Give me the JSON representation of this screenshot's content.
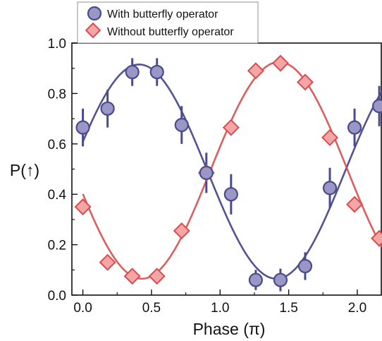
{
  "chart_data": {
    "type": "scatter",
    "xlabel": "Phase (π)",
    "ylabel": "P(↑)",
    "xlim": [
      -0.08,
      2.18
    ],
    "ylim": [
      0.0,
      1.0
    ],
    "xticks": [
      0.0,
      0.5,
      1.0,
      1.5,
      2.0
    ],
    "yticks": [
      0.0,
      0.2,
      0.4,
      0.6,
      0.8,
      1.0
    ],
    "xtick_labels": [
      "0.0",
      "0.5",
      "1.0",
      "1.5",
      "2.0"
    ],
    "ytick_labels": [
      "0.0",
      "0.2",
      "0.4",
      "0.6",
      "0.8",
      "1.0"
    ],
    "grid": false,
    "legend_position": "top",
    "series": [
      {
        "name": "With butterfly operator",
        "marker": "circle",
        "color": "#4a4a8c",
        "fill": "#9a97c6",
        "points": [
          {
            "x": 0.0,
            "y": 0.665,
            "err": 0.075
          },
          {
            "x": 0.18,
            "y": 0.74,
            "err": 0.075
          },
          {
            "x": 0.36,
            "y": 0.885,
            "err": 0.055
          },
          {
            "x": 0.54,
            "y": 0.885,
            "err": 0.055
          },
          {
            "x": 0.72,
            "y": 0.675,
            "err": 0.075
          },
          {
            "x": 0.9,
            "y": 0.485,
            "err": 0.08
          },
          {
            "x": 1.08,
            "y": 0.4,
            "err": 0.08
          },
          {
            "x": 1.26,
            "y": 0.06,
            "err": 0.04
          },
          {
            "x": 1.44,
            "y": 0.06,
            "err": 0.045
          },
          {
            "x": 1.62,
            "y": 0.115,
            "err": 0.055
          },
          {
            "x": 1.8,
            "y": 0.425,
            "err": 0.08
          },
          {
            "x": 1.98,
            "y": 0.665,
            "err": 0.075
          },
          {
            "x": 2.16,
            "y": 0.75,
            "err": 0.08
          }
        ],
        "fit": {
          "amplitude": 0.425,
          "offset": 0.49,
          "peak_phase": 0.41
        }
      },
      {
        "name": "Without butterfly operator",
        "marker": "diamond",
        "color": "#d94d4d",
        "fill": "#f4a6a6",
        "points": [
          {
            "x": 0.0,
            "y": 0.35
          },
          {
            "x": 0.18,
            "y": 0.13
          },
          {
            "x": 0.36,
            "y": 0.075
          },
          {
            "x": 0.54,
            "y": 0.075
          },
          {
            "x": 0.72,
            "y": 0.255
          },
          {
            "x": 0.9,
            "y": 0.485
          },
          {
            "x": 1.08,
            "y": 0.665
          },
          {
            "x": 1.26,
            "y": 0.89
          },
          {
            "x": 1.44,
            "y": 0.92
          },
          {
            "x": 1.62,
            "y": 0.845
          },
          {
            "x": 1.8,
            "y": 0.625
          },
          {
            "x": 1.98,
            "y": 0.36
          },
          {
            "x": 2.16,
            "y": 0.225
          }
        ],
        "fit": {
          "amplitude": 0.43,
          "offset": 0.495,
          "peak_phase": 1.43
        }
      }
    ]
  }
}
